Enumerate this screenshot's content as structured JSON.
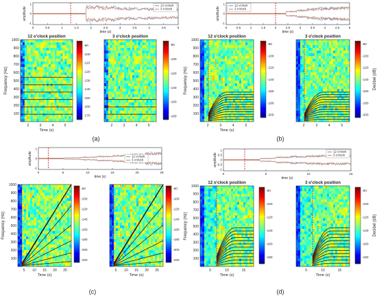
{
  "colors": {
    "series_12": "#2a7fc9",
    "series_3": "#d9602b",
    "marker": "#d42020",
    "axis": "#333333",
    "grid": "#e0e0e0"
  },
  "colormap": "jet",
  "chart_data": [
    {
      "label": "(a)",
      "type": "line",
      "xlabel": "time (s)",
      "ylabel": "amplitude",
      "xlim": [
        0,
        5
      ],
      "ylim": [
        -1,
        1
      ],
      "xticks": [
        "0",
        "0.5",
        "1",
        "1.5",
        "2",
        "2.5",
        "3",
        "3.5",
        "4",
        "4.5",
        "5"
      ],
      "yticks": [
        "1",
        "0",
        "-1"
      ],
      "legend": [
        "12 o'clock",
        "3 o'clock"
      ],
      "legend_position": "top-right",
      "marker_x": 1.3,
      "signal_start": 1.3,
      "envelope": [
        0.05,
        0.9,
        0.85,
        0.7,
        0.65,
        0.6,
        0.55,
        0.5
      ],
      "spectrograms": [
        {
          "title": "12 o'clock position",
          "xticks": [
            "2",
            "3",
            "4",
            "5"
          ],
          "yticks": [
            "100",
            "200",
            "300",
            "400",
            "500",
            "600",
            "700",
            "800",
            "900",
            "1000"
          ],
          "xlabel": "Time (s)",
          "ylabel": "Frequency (Hz)",
          "colorbar_ticks": [
            "-90",
            "-100",
            "-110",
            "-120",
            "-130",
            "-140",
            "-150",
            "-160",
            "-170"
          ],
          "colorbar_range": [
            -175,
            -85
          ],
          "pattern": "constant",
          "start": 1.3,
          "lines": [
            90,
            180,
            270,
            360,
            450,
            540
          ]
        },
        {
          "title": "3 o'clock position",
          "xticks": [
            "2",
            "3",
            "4",
            "5"
          ],
          "yticks": [],
          "xlabel": "",
          "ylabel": "",
          "colorbar_ticks": [
            "-80",
            "-100",
            "-120",
            "-140",
            "-160",
            "-180"
          ],
          "colorbar_range": [
            -185,
            -75
          ],
          "pattern": "constant",
          "start": 1.3,
          "lines": [
            90,
            180,
            270
          ]
        }
      ]
    },
    {
      "label": "(b)",
      "type": "line",
      "xlabel": "time (s)",
      "ylabel": "amplitude",
      "xlim": [
        0,
        5
      ],
      "ylim": [
        -1,
        1
      ],
      "xticks": [
        "0",
        "0.5",
        "1",
        "1.5",
        "2",
        "2.5",
        "3",
        "3.5",
        "4",
        "4.5",
        "5"
      ],
      "yticks": [
        "1",
        "0",
        "-1"
      ],
      "legend": [
        "12 o'clock",
        "3 o'clock"
      ],
      "legend_position": "top-left",
      "marker_x": 2.0,
      "signal_start": 2.0,
      "envelope": [
        0.05,
        0.3,
        0.45,
        0.6,
        0.7,
        0.75,
        0.8,
        0.8
      ],
      "spectrograms": [
        {
          "title": "12 o'clock position",
          "xticks": [
            "2",
            "3",
            "4",
            "5"
          ],
          "yticks": [
            "100",
            "200",
            "300",
            "400",
            "500",
            "600",
            "700",
            "800",
            "900",
            "1000"
          ],
          "xlabel": "Time (s)",
          "ylabel": "Frequency (Hz)",
          "colorbar_ticks": [
            "-80",
            "-100",
            "-120",
            "-140",
            "-160",
            "-180",
            "-200"
          ],
          "colorbar_range": [
            -205,
            -75
          ],
          "pattern": "rising",
          "start": 2.0,
          "lines": [
            30,
            60,
            90,
            120,
            150,
            180,
            210,
            240,
            270,
            300,
            330,
            360
          ]
        },
        {
          "title": "3 o'clock position",
          "xticks": [
            "2",
            "3",
            "4",
            "5"
          ],
          "yticks": [],
          "xlabel": "",
          "ylabel": "Decibel (dB)",
          "colorbar_ticks": [
            "-80",
            "-100",
            "-120",
            "-140",
            "-160",
            "-180",
            "-200"
          ],
          "colorbar_range": [
            -205,
            -75
          ],
          "pattern": "rising",
          "start": 2.0,
          "lines": [
            30,
            60,
            90,
            120,
            150,
            180,
            210,
            240,
            270,
            300,
            330,
            360
          ]
        }
      ]
    },
    {
      "label": "(c)",
      "type": "line",
      "xlabel": "time (s)",
      "ylabel": "amplitude",
      "xlim": [
        0,
        25
      ],
      "ylim": [
        -1,
        1
      ],
      "xticks": [
        "0",
        "5",
        "10",
        "15",
        "20",
        "25"
      ],
      "yticks": [
        "1",
        "0",
        "-1"
      ],
      "legend": [
        "12 o'clock",
        "3 o'clock"
      ],
      "legend_position": "center-right",
      "marker_x": 2.0,
      "signal_start": 2.0,
      "envelope": [
        0.05,
        0.1,
        0.18,
        0.28,
        0.4,
        0.55,
        0.7,
        0.8
      ],
      "spectrograms": [
        {
          "title": "",
          "xticks": [
            "5",
            "10",
            "15",
            "20",
            "25"
          ],
          "yticks": [
            "100",
            "200",
            "300",
            "400",
            "500",
            "600",
            "700",
            "800",
            "900",
            "1000"
          ],
          "xlabel": "Time (s)",
          "ylabel": "Frequency (Hz)",
          "colorbar_ticks": [
            "-80",
            "-100",
            "-120",
            "-140",
            "-160",
            "-180",
            "-200",
            "-220"
          ],
          "colorbar_range": [
            -225,
            -75
          ],
          "pattern": "fan",
          "start": 2.0,
          "lines": [
            40,
            80,
            120,
            160,
            200,
            240,
            280,
            320,
            360,
            400
          ]
        },
        {
          "title": "",
          "xticks": [
            "5",
            "10",
            "15",
            "20",
            "25"
          ],
          "yticks": [],
          "xlabel": "Time (s)",
          "ylabel": "",
          "colorbar_ticks": [
            "-80",
            "-100",
            "-120",
            "-140",
            "-160",
            "-180",
            "-200",
            "-220"
          ],
          "colorbar_range": [
            -225,
            -75
          ],
          "pattern": "fan",
          "start": 2.0,
          "lines": [
            40,
            80,
            120,
            160,
            200,
            240,
            280,
            320,
            360,
            400
          ]
        }
      ]
    },
    {
      "label": "(d)",
      "type": "line",
      "xlabel": "time (s)",
      "ylabel": "amplitude",
      "xlim": [
        0,
        15
      ],
      "ylim": [
        -1,
        1
      ],
      "xticks": [
        "0",
        "5",
        "10",
        "15"
      ],
      "yticks": [
        "1",
        "0.5",
        "0",
        "-0.5",
        "-1"
      ],
      "legend": [
        "12 o'clock",
        "3 o'clock"
      ],
      "legend_position": "top-right",
      "marker_x": 2.5,
      "signal_start": 2.5,
      "envelope": [
        0.05,
        0.2,
        0.35,
        0.45,
        0.5,
        0.55,
        0.55,
        0.55
      ],
      "spectrograms": [
        {
          "title": "12 o'clock position",
          "xticks": [
            "5",
            "10",
            "15"
          ],
          "yticks": [
            "100",
            "200",
            "300",
            "400",
            "500",
            "600",
            "700",
            "800",
            "900",
            "1000"
          ],
          "xlabel": "Time (s)",
          "ylabel": "Frequency (Hz)",
          "colorbar_ticks": [
            "-80",
            "-100",
            "-120",
            "-140",
            "-160",
            "-180"
          ],
          "colorbar_range": [
            -190,
            -75
          ],
          "pattern": "rising",
          "start": 2.5,
          "lines": [
            40,
            80,
            120,
            160,
            200,
            240,
            280,
            320,
            360,
            400,
            440,
            480
          ]
        },
        {
          "title": "3 o'clock position",
          "xticks": [
            "5",
            "10",
            "15"
          ],
          "yticks": [],
          "xlabel": "Time (s)",
          "ylabel": "Decibel (dB)",
          "colorbar_ticks": [
            "-80",
            "-100",
            "-120",
            "-140",
            "-160",
            "-180"
          ],
          "colorbar_range": [
            -190,
            -75
          ],
          "pattern": "rising",
          "start": 2.5,
          "lines": [
            40,
            80,
            120,
            160,
            200,
            240,
            280,
            320,
            360,
            400,
            440,
            480
          ]
        }
      ]
    }
  ]
}
